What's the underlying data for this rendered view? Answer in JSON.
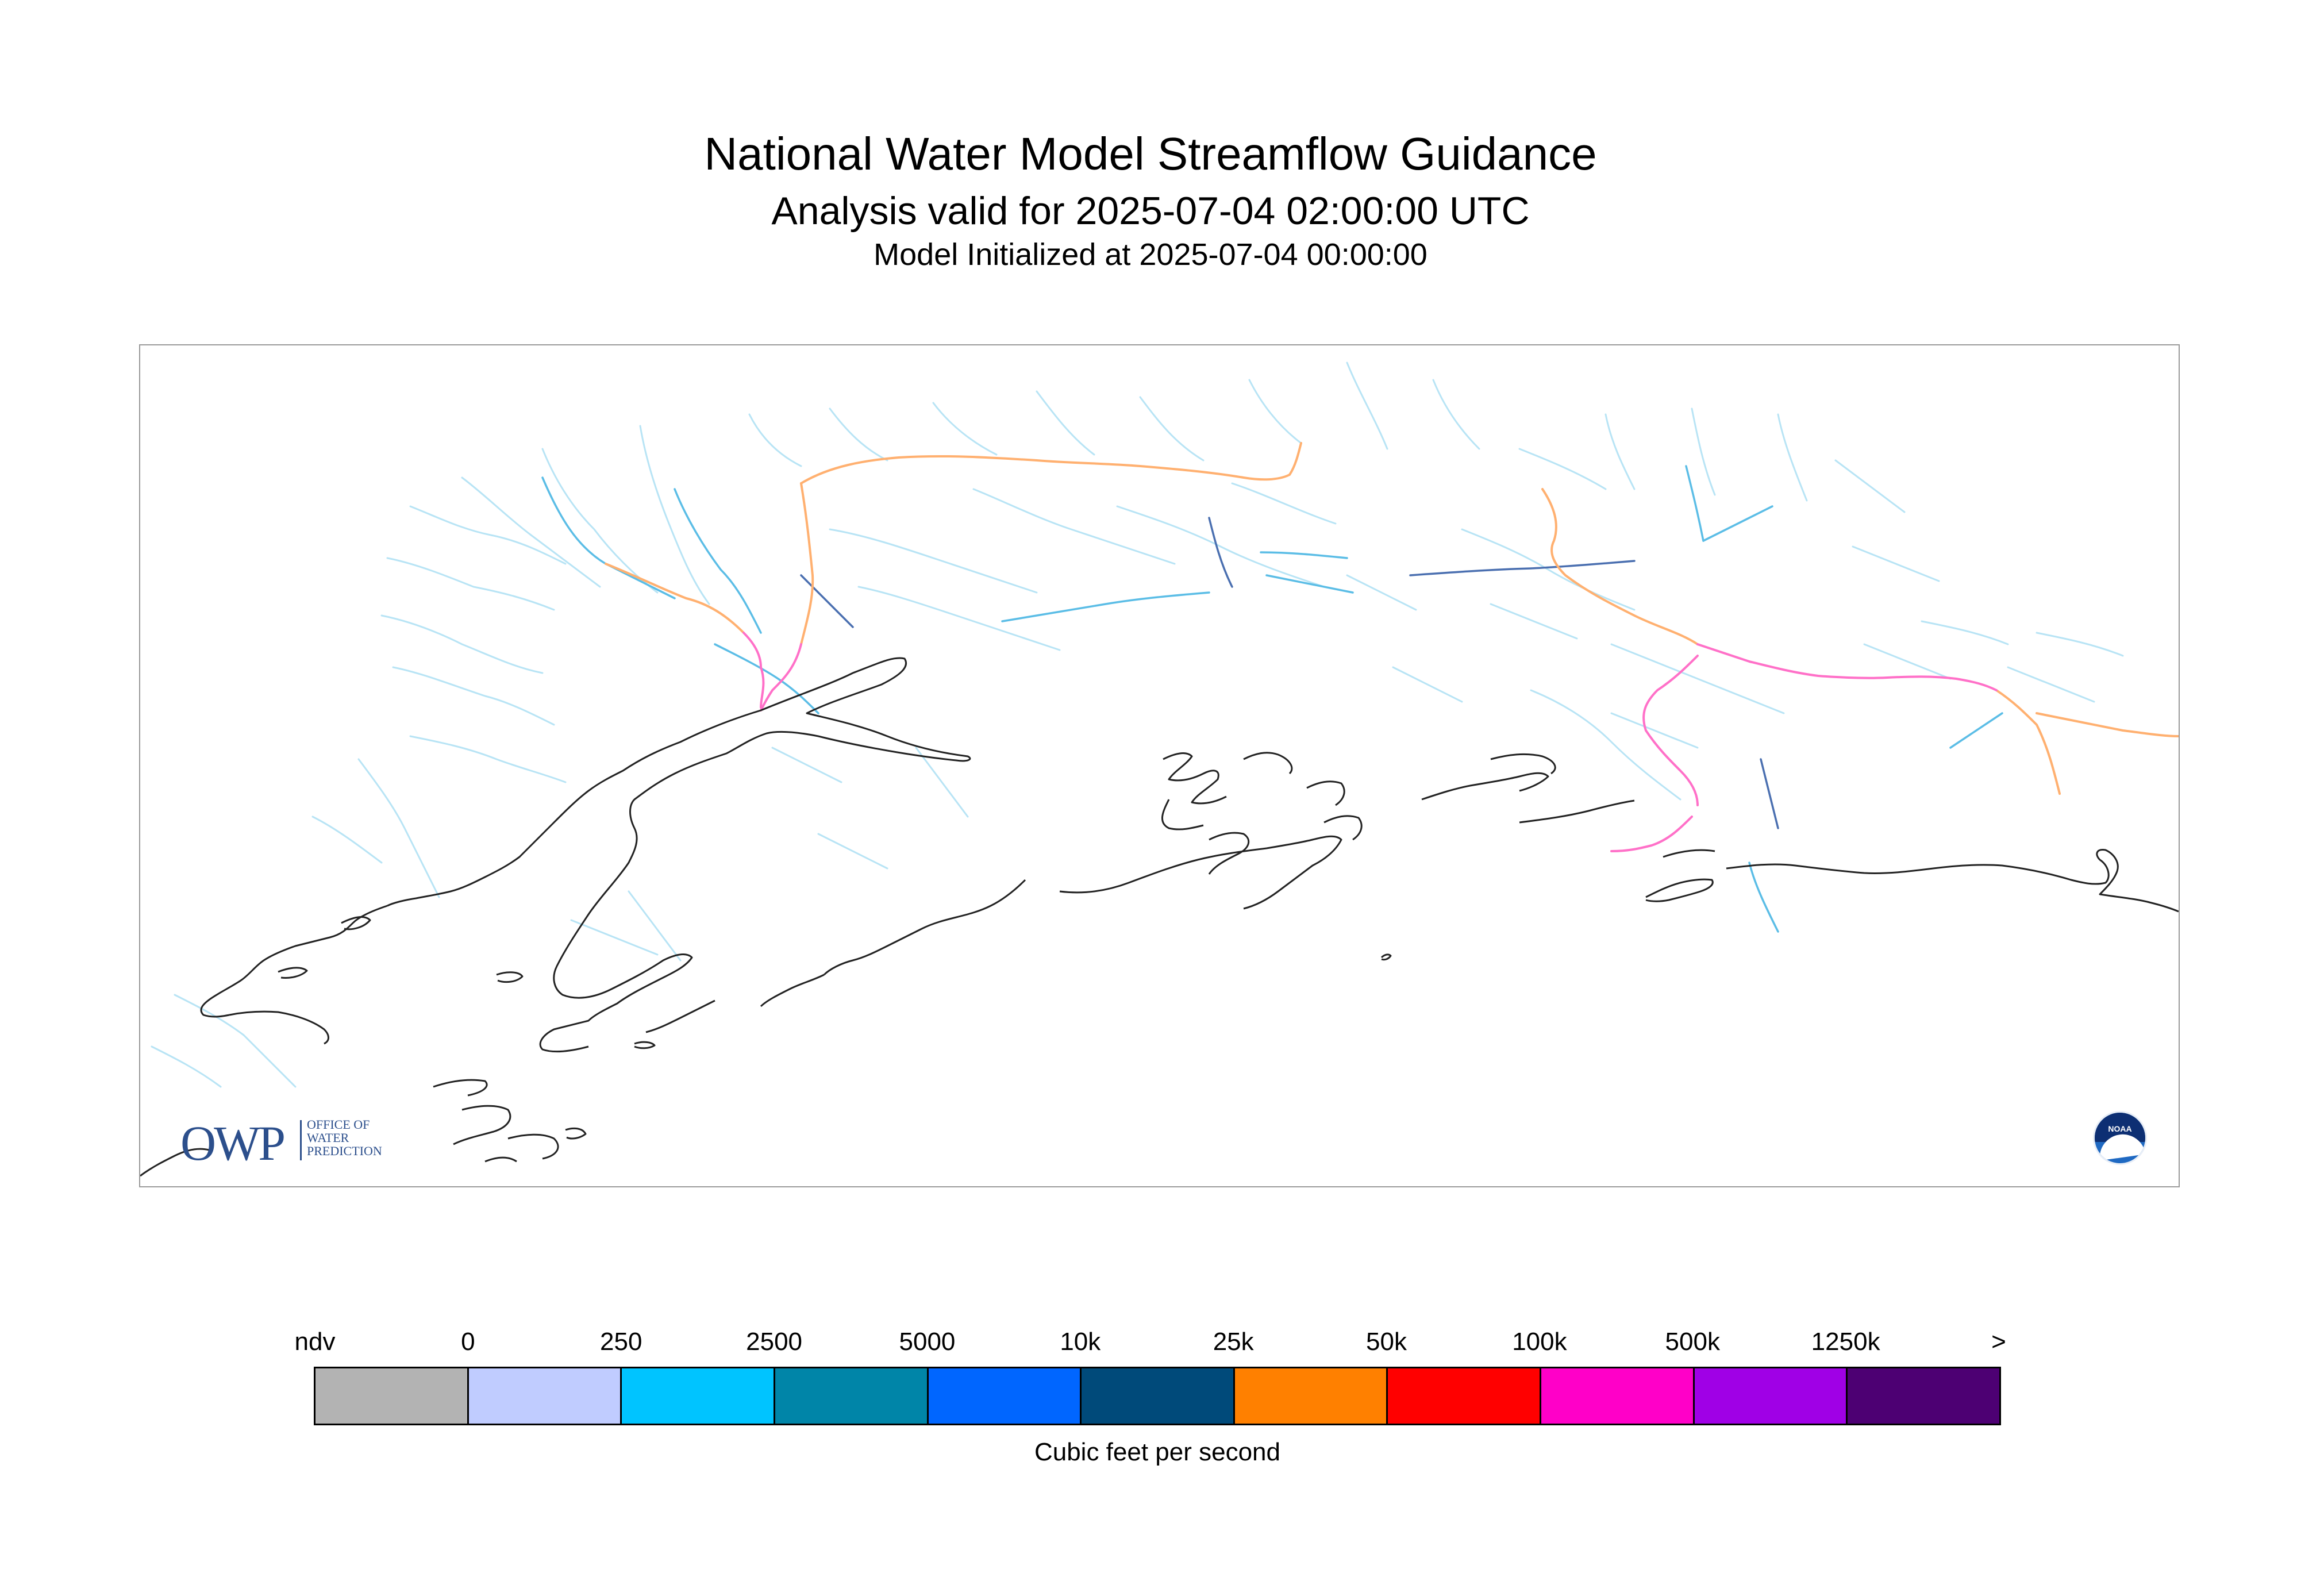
{
  "header": {
    "title": "National Water Model Streamflow Guidance",
    "subtitle": "Analysis valid for 2025-07-04 02:00:00 UTC",
    "init": "Model Initialized at 2025-07-04 00:00:00"
  },
  "logos": {
    "owp_mark": "OWP",
    "owp_line1": "OFFICE OF",
    "owp_line2": "WATER",
    "owp_line3": "PREDICTION",
    "noaa_label": "NOAA"
  },
  "legend": {
    "ticks": [
      "ndv",
      "0",
      "250",
      "2500",
      "5000",
      "10k",
      "25k",
      "50k",
      "100k",
      "500k",
      "1250k",
      ">"
    ],
    "colors": [
      "#b3b3b3",
      "#c0ccff",
      "#00c4ff",
      "#0085a8",
      "#0066ff",
      "#004a7a",
      "#ff8000",
      "#ff0000",
      "#ff00c8",
      "#a000e6",
      "#4d0073"
    ],
    "units": "Cubic feet per second"
  },
  "map": {
    "coastline_color": "#222222",
    "small_stream_color": "#b8e4f5",
    "stream_color": "#5bbde6",
    "mid_river_color": "#4a6fb0",
    "large_river_color": "#ffb070",
    "major_river_color": "#ff70c8"
  }
}
